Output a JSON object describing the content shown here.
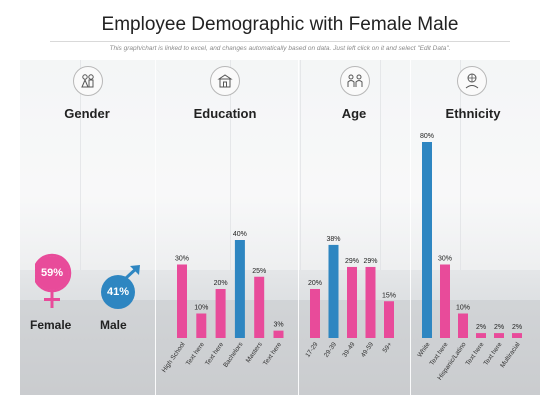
{
  "title": "Employee Demographic with Female Male",
  "subtitle": "This graph/chart is linked to excel, and changes automatically based on data. Just left click on it and select \"Edit Data\".",
  "colors": {
    "pink": "#e84b9a",
    "blue": "#2e86c1"
  },
  "gender": {
    "heading": "Gender",
    "female": {
      "label": "Female",
      "percent": "59%"
    },
    "male": {
      "label": "Male",
      "percent": "41%"
    }
  },
  "chart_data": [
    {
      "type": "bar",
      "title": "Education",
      "categories": [
        "High School",
        "Text here",
        "Text here",
        "Bachelors",
        "Masters",
        "Text here"
      ],
      "values": [
        30,
        10,
        20,
        40,
        25,
        3
      ],
      "labels": [
        "30%",
        "10%",
        "20%",
        "40%",
        "25%",
        "3%"
      ],
      "highlight": [
        3
      ],
      "icon": "school-icon"
    },
    {
      "type": "bar",
      "title": "Age",
      "categories": [
        "17-29",
        "29-39",
        "39-49",
        "49-59",
        "59+"
      ],
      "values": [
        20,
        38,
        29,
        29,
        15
      ],
      "labels": [
        "20%",
        "38%",
        "29%",
        "29%",
        "15%"
      ],
      "highlight": [
        1
      ],
      "icon": "people-icon"
    },
    {
      "type": "bar",
      "title": "Ethnicity",
      "categories": [
        "White",
        "Text here",
        "Hispanic/Latino",
        "Text here",
        "Text here",
        "Multiracial"
      ],
      "values": [
        80,
        30,
        10,
        2,
        2,
        2
      ],
      "labels": [
        "80%",
        "30%",
        "10%",
        "2%",
        "2%",
        "2%"
      ],
      "highlight": [
        0
      ],
      "icon": "person-globe-icon"
    }
  ]
}
